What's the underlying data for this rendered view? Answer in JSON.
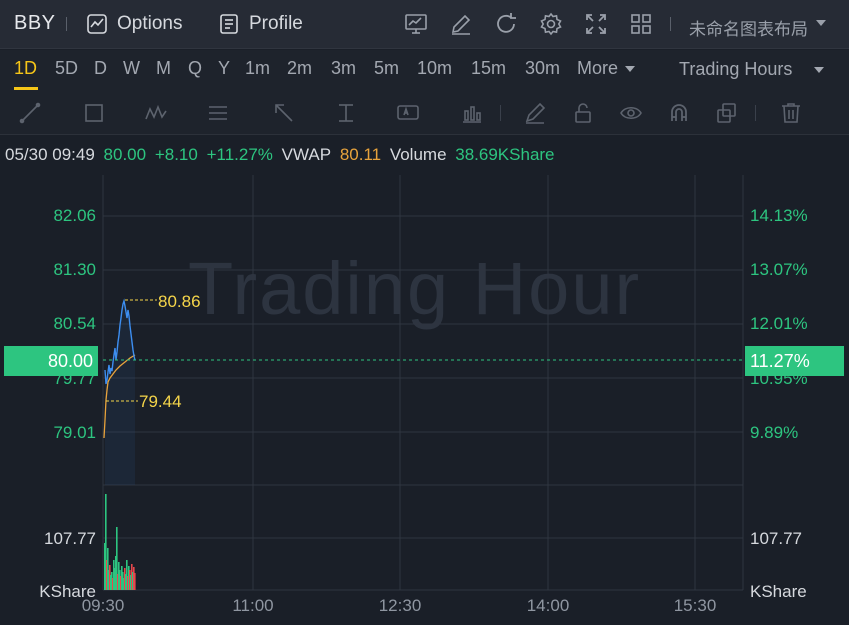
{
  "toolbar": {
    "ticker": "BBY",
    "options_label": "Options",
    "profile_label": "Profile",
    "layout_name": "未命名图表布局",
    "icons": [
      "chart-template-icon",
      "draw-icon",
      "refresh-icon",
      "settings-icon",
      "fullscreen-icon",
      "layout-grid-icon"
    ]
  },
  "periods": [
    "1D",
    "5D",
    "D",
    "W",
    "M",
    "Q",
    "Y",
    "1m",
    "2m",
    "3m",
    "5m",
    "10m",
    "15m",
    "30m",
    "More"
  ],
  "active_period": "1D",
  "trading_hours_label": "Trading Hours",
  "info": {
    "datetime": "05/30 09:49",
    "price": "80.00",
    "change": "+8.10",
    "change_pct": "+11.27%",
    "vwap_label": "VWAP",
    "vwap": "80.11",
    "volume_label": "Volume",
    "volume": "38.69KShare"
  },
  "watermark": "Trading Hour",
  "price_axis": {
    "left_labels": [
      "82.06",
      "81.30",
      "80.54",
      "79.77",
      "79.01"
    ],
    "right_labels": [
      "14.13%",
      "13.07%",
      "12.01%",
      "10.95%",
      "9.89%"
    ],
    "current_price": "80.00",
    "current_pct": "11.27%"
  },
  "volume_axis": {
    "left_label": "107.77",
    "right_label": "107.77",
    "unit_left": "KShare",
    "unit_right": "KShare"
  },
  "time_axis": [
    "09:30",
    "11:00",
    "12:30",
    "14:00",
    "15:30"
  ],
  "annotations": {
    "high": "80.86",
    "low": "79.44"
  },
  "colors": {
    "up": "#2dc580",
    "down": "#e5484d",
    "accent": "#f5c518",
    "price_line": "#3d8ef0",
    "vwap_line": "#e8a33c"
  }
}
